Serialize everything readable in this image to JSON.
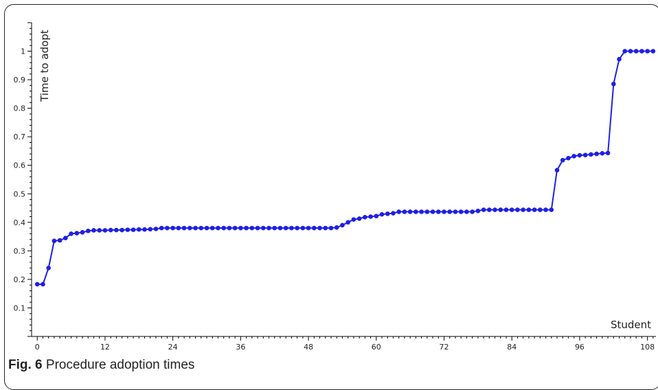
{
  "figure_caption": {
    "label": "Fig. 6",
    "text": "Procedure adoption times"
  },
  "colors": {
    "series": "#1f1fe6",
    "axis": "#000000",
    "text": "#222222"
  },
  "chart_data": {
    "type": "line",
    "title": "",
    "xlabel": "Student",
    "ylabel": "Time to adopt",
    "xlim": [
      -1,
      109.5
    ],
    "ylim": [
      0,
      1.1
    ],
    "grid": false,
    "x_ticks": [
      0,
      12,
      24,
      36,
      48,
      60,
      72,
      84,
      96,
      108
    ],
    "y_ticks": [
      0.1,
      0.2,
      0.3,
      0.4,
      0.5,
      0.6,
      0.7,
      0.8,
      0.9,
      1
    ],
    "series": [
      {
        "name": "",
        "color": "#1f1fe6",
        "markers": true,
        "x": [
          0,
          1,
          2,
          3,
          4,
          5,
          6,
          7,
          8,
          9,
          10,
          11,
          12,
          13,
          14,
          15,
          16,
          17,
          18,
          19,
          20,
          21,
          22,
          23,
          24,
          25,
          26,
          27,
          28,
          29,
          30,
          31,
          32,
          33,
          34,
          35,
          36,
          37,
          38,
          39,
          40,
          41,
          42,
          43,
          44,
          45,
          46,
          47,
          48,
          49,
          50,
          51,
          52,
          53,
          54,
          55,
          56,
          57,
          58,
          59,
          60,
          61,
          62,
          63,
          64,
          65,
          66,
          67,
          68,
          69,
          70,
          71,
          72,
          73,
          74,
          75,
          76,
          77,
          78,
          79,
          80,
          81,
          82,
          83,
          84,
          85,
          86,
          87,
          88,
          89,
          90,
          91,
          92,
          93,
          94,
          95,
          96,
          97,
          98,
          99,
          100,
          101,
          102,
          103,
          104,
          105,
          106,
          107,
          108,
          109
        ],
        "values": [
          0.183,
          0.183,
          0.24,
          0.335,
          0.337,
          0.345,
          0.36,
          0.362,
          0.365,
          0.37,
          0.372,
          0.372,
          0.372,
          0.373,
          0.373,
          0.373,
          0.374,
          0.374,
          0.375,
          0.375,
          0.376,
          0.377,
          0.38,
          0.38,
          0.38,
          0.38,
          0.38,
          0.38,
          0.38,
          0.38,
          0.38,
          0.38,
          0.38,
          0.38,
          0.38,
          0.38,
          0.38,
          0.38,
          0.38,
          0.38,
          0.38,
          0.38,
          0.38,
          0.38,
          0.38,
          0.38,
          0.38,
          0.38,
          0.38,
          0.38,
          0.38,
          0.38,
          0.38,
          0.382,
          0.39,
          0.4,
          0.41,
          0.413,
          0.418,
          0.42,
          0.422,
          0.428,
          0.43,
          0.432,
          0.437,
          0.437,
          0.437,
          0.437,
          0.437,
          0.437,
          0.437,
          0.437,
          0.437,
          0.437,
          0.437,
          0.437,
          0.437,
          0.437,
          0.44,
          0.444,
          0.444,
          0.444,
          0.444,
          0.444,
          0.444,
          0.444,
          0.444,
          0.444,
          0.444,
          0.444,
          0.444,
          0.444,
          0.583,
          0.618,
          0.625,
          0.632,
          0.635,
          0.636,
          0.638,
          0.64,
          0.642,
          0.643,
          0.885,
          0.972,
          1.0,
          1.0,
          1.0,
          1.0,
          1.0,
          1.0
        ]
      }
    ]
  }
}
